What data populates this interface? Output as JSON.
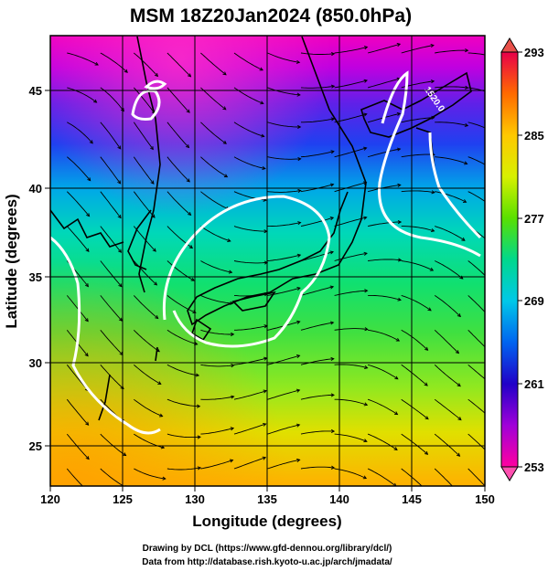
{
  "title": "MSM 18Z20Jan2024 (850.0hPa)",
  "x_axis": {
    "label": "Longitude (degrees)",
    "range": [
      120,
      150
    ],
    "ticks": [
      "120",
      "125",
      "130",
      "135",
      "140",
      "145",
      "150"
    ]
  },
  "y_axis": {
    "label": "Latitude  (degrees)",
    "range": [
      22.5,
      48
    ],
    "ticks": [
      "25",
      "30",
      "35",
      "40",
      "45"
    ]
  },
  "colorbar": {
    "range": [
      253,
      293
    ],
    "labels": [
      "293",
      "285",
      "277",
      "269",
      "261",
      "253"
    ],
    "colors": [
      "#e8004a",
      "#ff6a00",
      "#ffc800",
      "#d8f000",
      "#5ae000",
      "#00d88c",
      "#00c8e8",
      "#0064f0",
      "#2000c8",
      "#a000d8",
      "#ff00a0"
    ]
  },
  "contour": {
    "label": "1520.0",
    "color": "#ffffff"
  },
  "grid": true,
  "footer": {
    "line1": "Drawing by DCL (https://www.gfd-dennou.org/library/dcl/)",
    "line2": "Data from http://database.rish.kyoto-u.ac.jp/arch/jmadata/"
  }
}
